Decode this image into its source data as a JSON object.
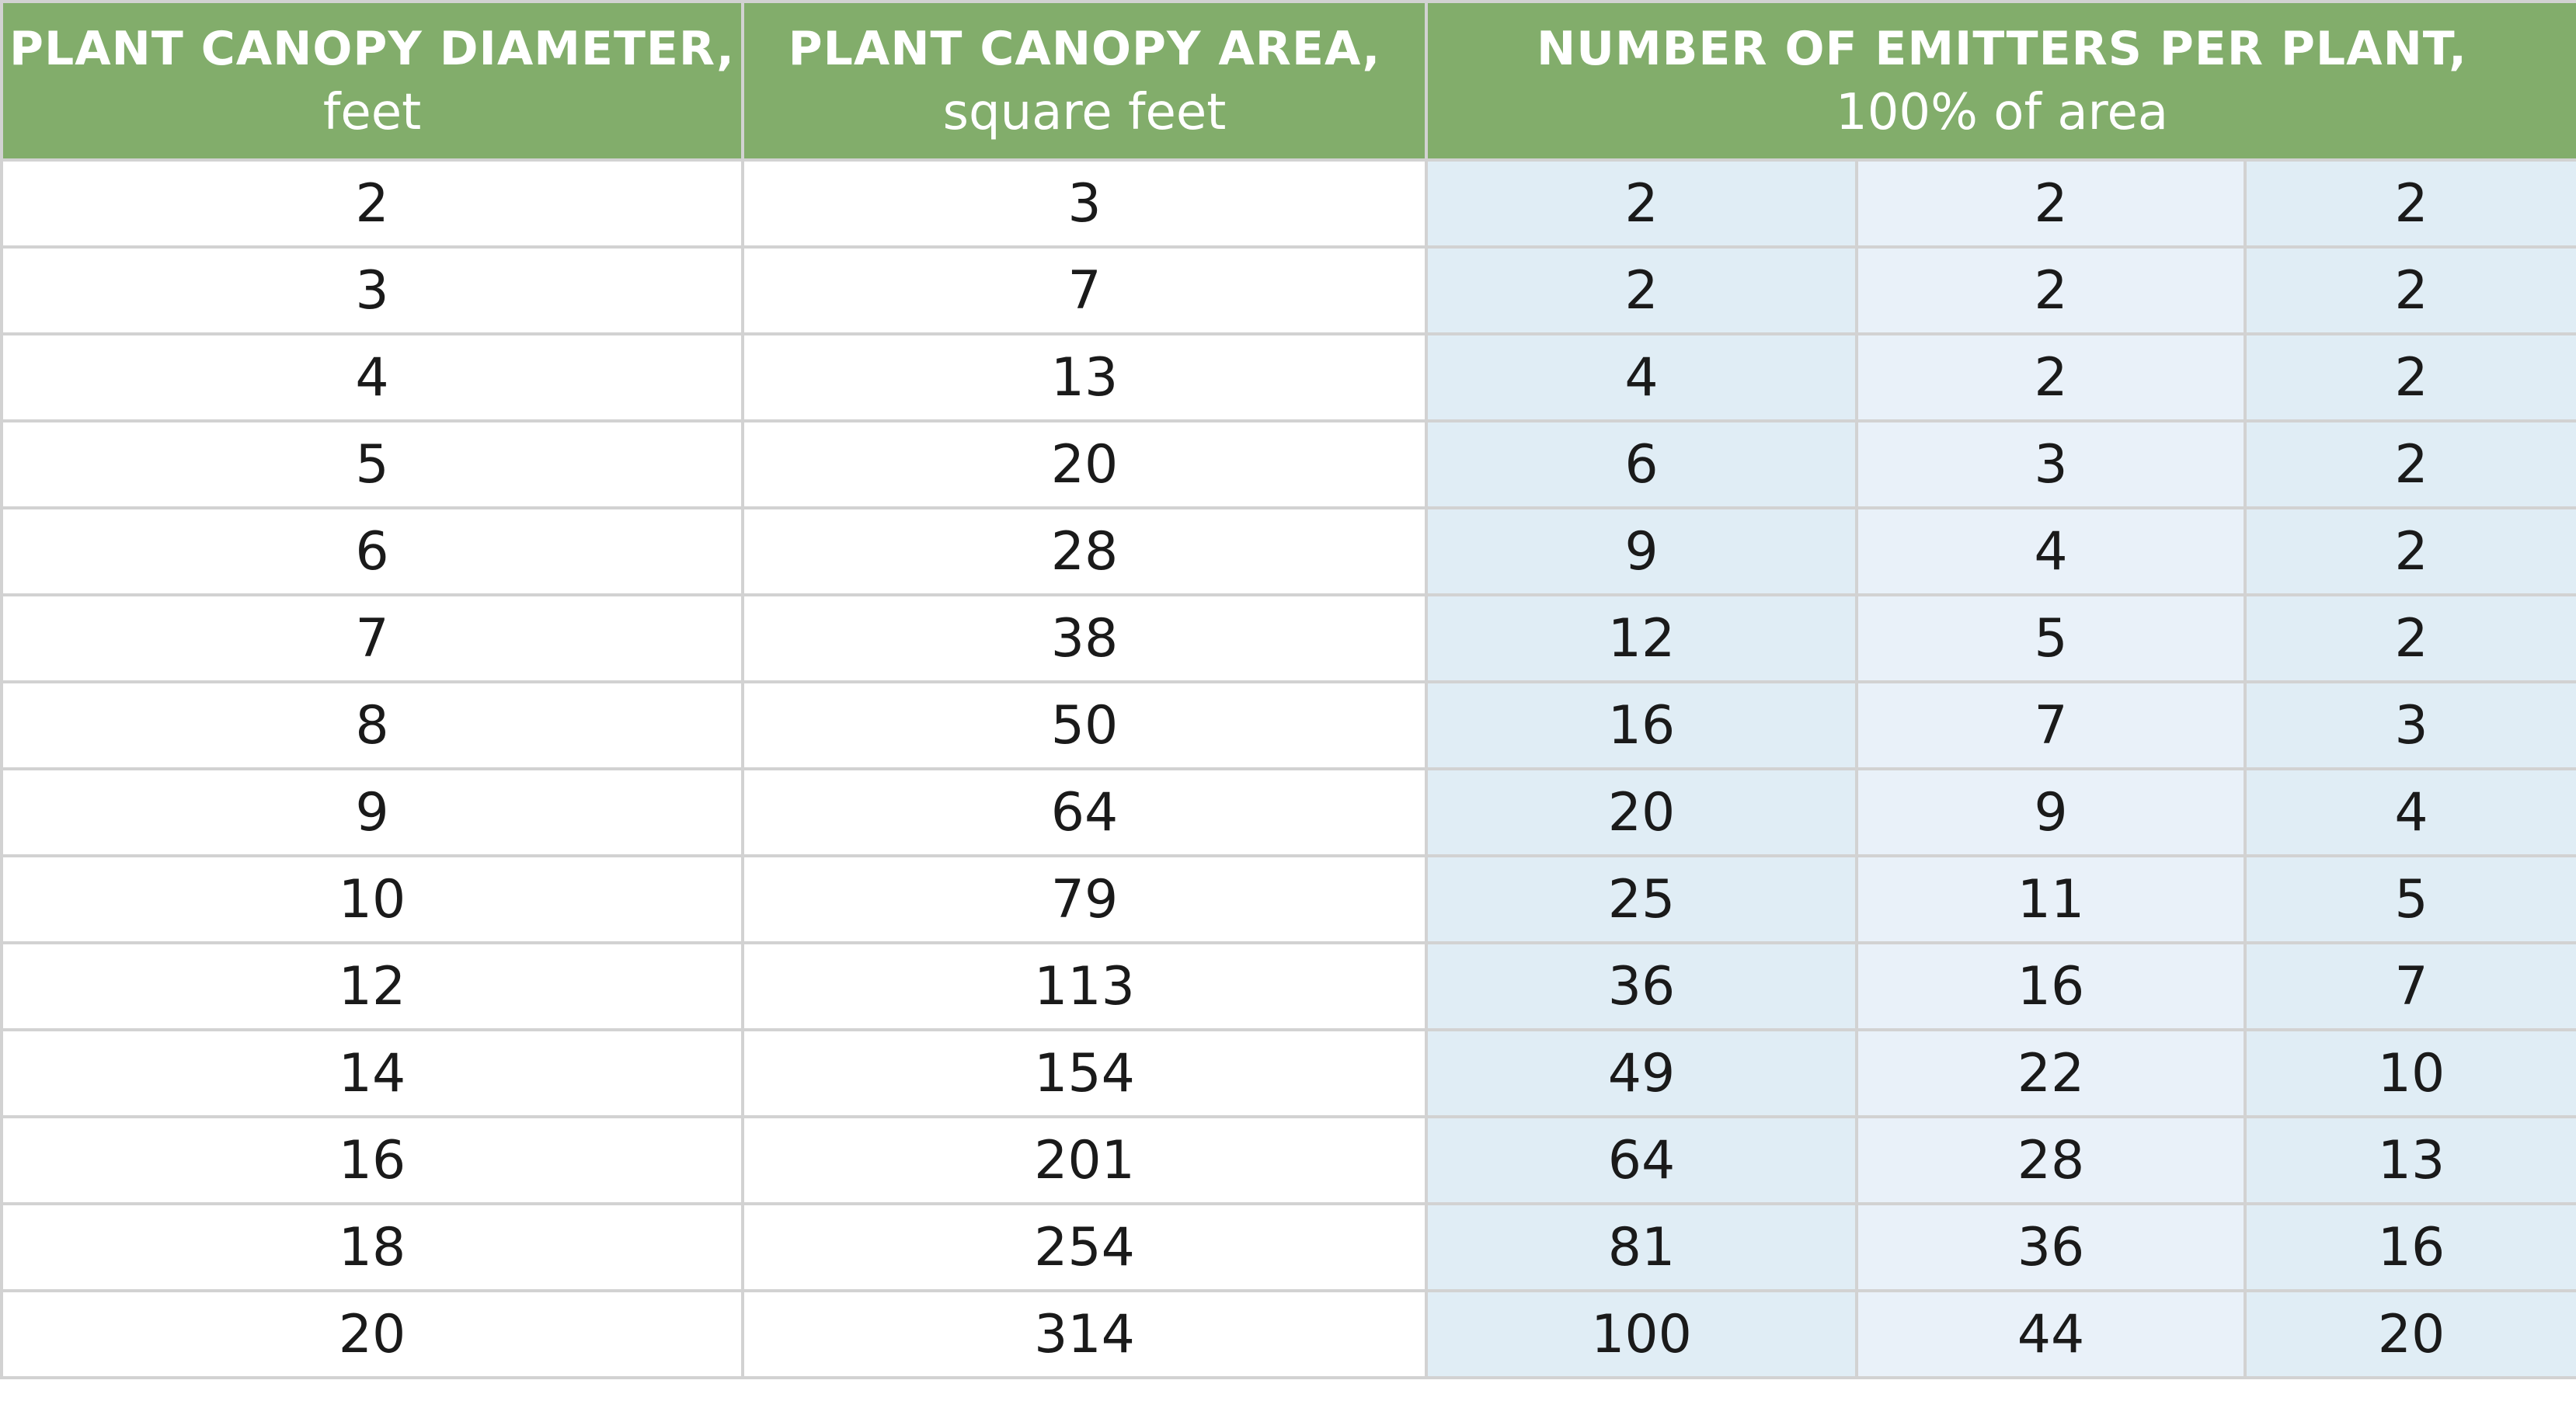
{
  "headers": {
    "diameter": {
      "title": "PLANT CANOPY DIAMETER,",
      "unit": "feet"
    },
    "area": {
      "title": "PLANT CANOPY AREA,",
      "unit": "square feet"
    },
    "emitters": {
      "title": "NUMBER OF EMITTERS PER PLANT,",
      "unit": "100% of area"
    }
  },
  "rows": [
    {
      "diameter": "2",
      "area": "3",
      "emitters": [
        "2",
        "2",
        "2"
      ]
    },
    {
      "diameter": "3",
      "area": "7",
      "emitters": [
        "2",
        "2",
        "2"
      ]
    },
    {
      "diameter": "4",
      "area": "13",
      "emitters": [
        "4",
        "2",
        "2"
      ]
    },
    {
      "diameter": "5",
      "area": "20",
      "emitters": [
        "6",
        "3",
        "2"
      ]
    },
    {
      "diameter": "6",
      "area": "28",
      "emitters": [
        "9",
        "4",
        "2"
      ]
    },
    {
      "diameter": "7",
      "area": "38",
      "emitters": [
        "12",
        "5",
        "2"
      ]
    },
    {
      "diameter": "8",
      "area": "50",
      "emitters": [
        "16",
        "7",
        "3"
      ]
    },
    {
      "diameter": "9",
      "area": "64",
      "emitters": [
        "20",
        "9",
        "4"
      ]
    },
    {
      "diameter": "10",
      "area": "79",
      "emitters": [
        "25",
        "11",
        "5"
      ]
    },
    {
      "diameter": "12",
      "area": "113",
      "emitters": [
        "36",
        "16",
        "7"
      ]
    },
    {
      "diameter": "14",
      "area": "154",
      "emitters": [
        "49",
        "22",
        "10"
      ]
    },
    {
      "diameter": "16",
      "area": "201",
      "emitters": [
        "64",
        "28",
        "13"
      ]
    },
    {
      "diameter": "18",
      "area": "254",
      "emitters": [
        "81",
        "36",
        "16"
      ]
    },
    {
      "diameter": "20",
      "area": "314",
      "emitters": [
        "100",
        "44",
        "20"
      ]
    }
  ],
  "colors": {
    "header_bg": "#82ad6b",
    "header_text": "#ffffff",
    "emitter_col_a": "#e0edf5",
    "emitter_col_b": "#e9f1f9",
    "grid": "#d2d2d2"
  }
}
